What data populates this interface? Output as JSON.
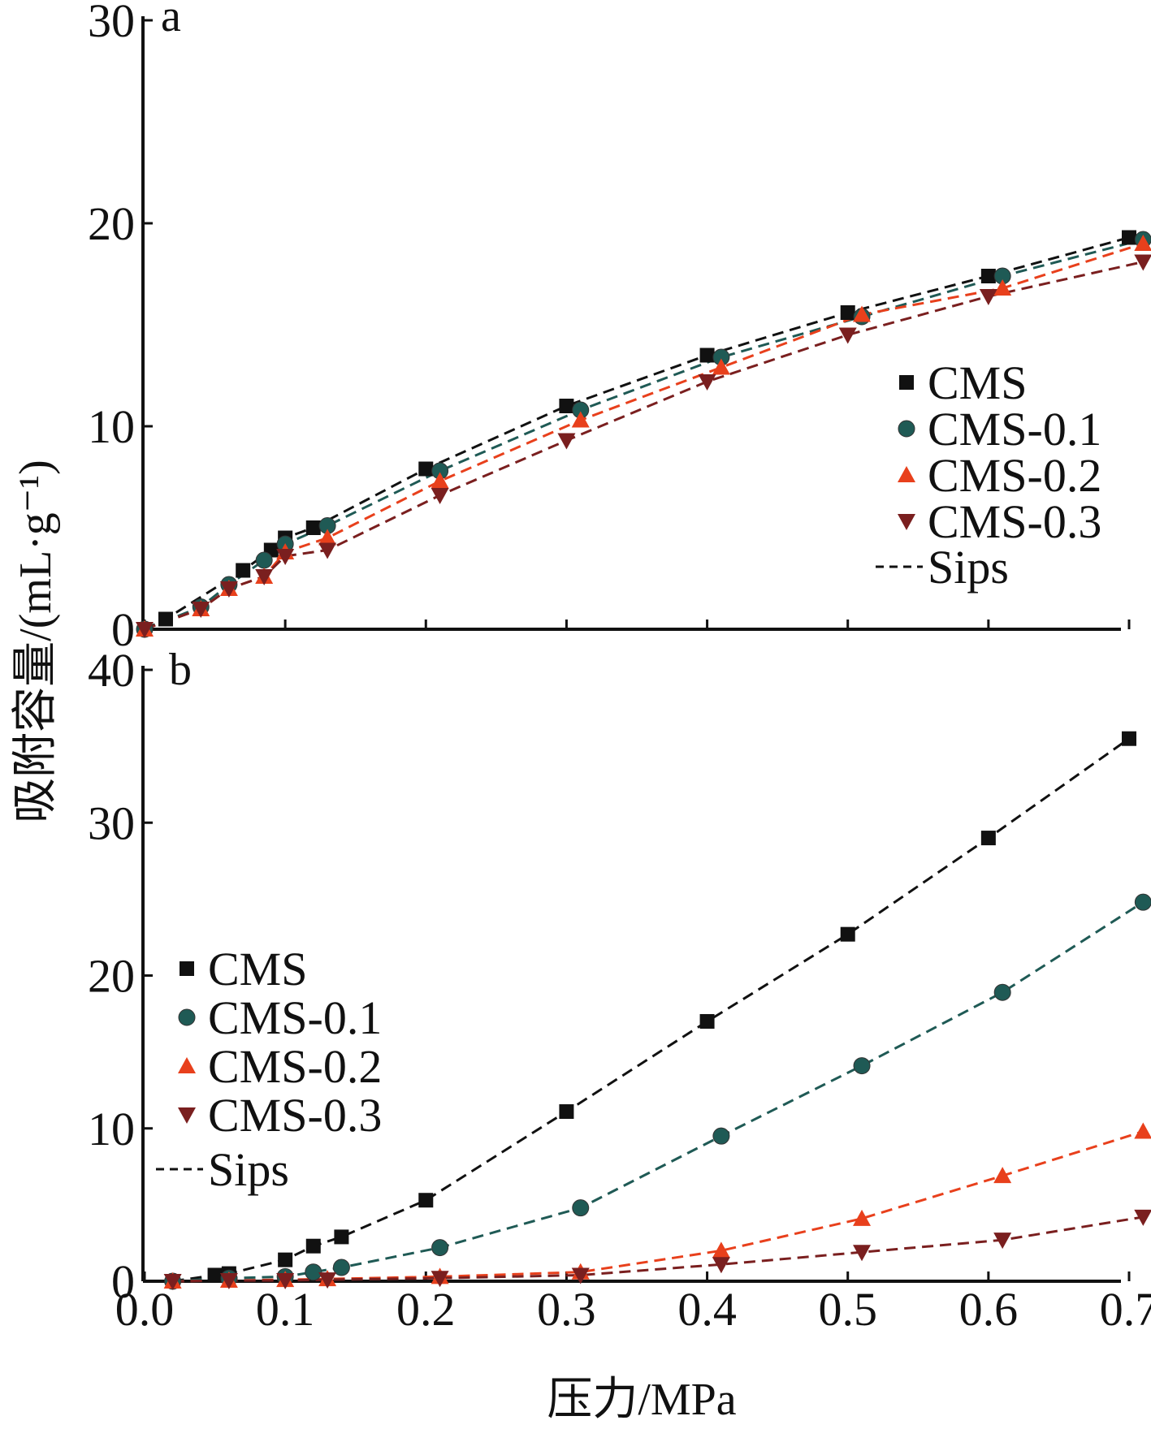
{
  "figure": {
    "x_axis_title": "压力/MPa",
    "y_axis_title": "吸附容量/(mL·g⁻¹)",
    "panel_labels": [
      "a",
      "b"
    ]
  },
  "series_styles": [
    {
      "name": "CMS",
      "color": "#111111",
      "marker": "square"
    },
    {
      "name": "CMS-0.1",
      "color": "#1f5a55",
      "marker": "circle"
    },
    {
      "name": "CMS-0.2",
      "color": "#e8401c",
      "marker": "triangle-up"
    },
    {
      "name": "CMS-0.3",
      "color": "#7a1f1f",
      "marker": "triangle-down"
    }
  ],
  "fit_label": "Sips",
  "chart_data": [
    {
      "type": "scatter",
      "panel": "a",
      "xlim": [
        0.0,
        0.7
      ],
      "ylim": [
        0,
        30
      ],
      "x_ticks": [
        "0.0",
        "0.1",
        "0.2",
        "0.3",
        "0.4",
        "0.5",
        "0.6",
        "0.7"
      ],
      "y_ticks": [
        "0",
        "10",
        "20",
        "30"
      ],
      "legend_position": "right",
      "fit_curve": "Sips (dashed)",
      "series": [
        {
          "name": "CMS",
          "x": [
            0.0,
            0.015,
            0.07,
            0.09,
            0.1,
            0.12,
            0.2,
            0.3,
            0.4,
            0.5,
            0.6,
            0.7
          ],
          "y": [
            0.0,
            0.5,
            2.9,
            3.9,
            4.5,
            5.0,
            7.9,
            11.0,
            13.5,
            15.6,
            17.4,
            19.3
          ]
        },
        {
          "name": "CMS-0.1",
          "x": [
            0.0,
            0.04,
            0.06,
            0.085,
            0.1,
            0.13,
            0.21,
            0.31,
            0.41,
            0.51,
            0.61,
            0.71
          ],
          "y": [
            0.0,
            1.1,
            2.2,
            3.4,
            4.2,
            5.1,
            7.8,
            10.8,
            13.4,
            15.4,
            17.4,
            19.2
          ]
        },
        {
          "name": "CMS-0.2",
          "x": [
            0.0,
            0.04,
            0.06,
            0.085,
            0.1,
            0.13,
            0.21,
            0.31,
            0.41,
            0.51,
            0.61,
            0.71
          ],
          "y": [
            0.0,
            1.0,
            2.0,
            2.6,
            3.8,
            4.5,
            7.3,
            10.3,
            12.9,
            15.5,
            16.8,
            19.0
          ]
        },
        {
          "name": "CMS-0.3",
          "x": [
            0.0,
            0.04,
            0.06,
            0.085,
            0.1,
            0.13,
            0.21,
            0.3,
            0.4,
            0.5,
            0.6,
            0.71
          ],
          "y": [
            0.0,
            1.0,
            2.0,
            2.6,
            3.6,
            3.9,
            6.6,
            9.3,
            12.2,
            14.5,
            16.4,
            18.1
          ]
        }
      ]
    },
    {
      "type": "scatter",
      "panel": "b",
      "xlim": [
        0.0,
        0.7
      ],
      "ylim": [
        0,
        40
      ],
      "x_ticks": [
        "0.0",
        "0.1",
        "0.2",
        "0.3",
        "0.4",
        "0.5",
        "0.6",
        "0.7"
      ],
      "y_ticks": [
        "0",
        "10",
        "20",
        "30",
        "40"
      ],
      "legend_position": "left",
      "fit_curve": "Sips (dashed)",
      "series": [
        {
          "name": "CMS",
          "x": [
            0.02,
            0.05,
            0.06,
            0.1,
            0.12,
            0.14,
            0.2,
            0.3,
            0.4,
            0.5,
            0.6,
            0.7
          ],
          "y": [
            0.0,
            0.4,
            0.5,
            1.4,
            2.3,
            2.9,
            5.3,
            11.1,
            17.0,
            22.7,
            29.0,
            35.5
          ]
        },
        {
          "name": "CMS-0.1",
          "x": [
            0.02,
            0.06,
            0.1,
            0.12,
            0.14,
            0.21,
            0.31,
            0.41,
            0.51,
            0.61,
            0.71
          ],
          "y": [
            0.0,
            0.2,
            0.3,
            0.6,
            0.9,
            2.2,
            4.8,
            9.5,
            14.1,
            18.9,
            24.8
          ]
        },
        {
          "name": "CMS-0.2",
          "x": [
            0.02,
            0.06,
            0.1,
            0.13,
            0.21,
            0.31,
            0.41,
            0.51,
            0.61,
            0.71
          ],
          "y": [
            0.0,
            0.05,
            0.1,
            0.15,
            0.3,
            0.6,
            2.0,
            4.1,
            6.9,
            9.8
          ]
        },
        {
          "name": "CMS-0.3",
          "x": [
            0.02,
            0.06,
            0.1,
            0.13,
            0.21,
            0.31,
            0.41,
            0.51,
            0.61,
            0.71
          ],
          "y": [
            0.0,
            0.05,
            0.05,
            0.1,
            0.2,
            0.4,
            1.1,
            1.9,
            2.7,
            4.2
          ]
        }
      ]
    }
  ]
}
